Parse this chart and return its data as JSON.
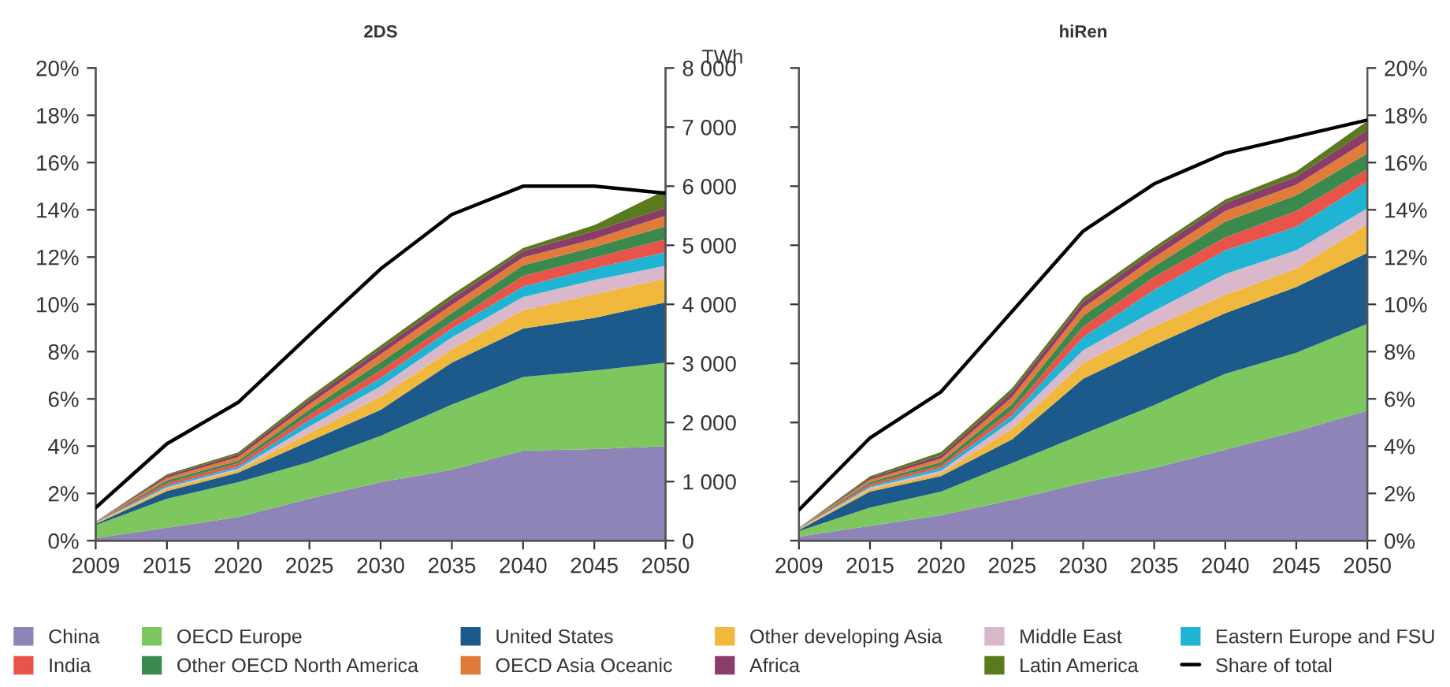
{
  "chart_data": [
    {
      "type": "area",
      "title": "2DS",
      "stacked": true,
      "legend": "bottom",
      "categories": [
        "2009",
        "2015",
        "2020",
        "2025",
        "2030",
        "2035",
        "2040",
        "2045",
        "2050"
      ],
      "series": [
        {
          "name": "China",
          "color": "#8e84b8",
          "axis": "y2",
          "values": [
            45,
            220,
            400,
            710,
            990,
            1200,
            1525,
            1550,
            1600
          ]
        },
        {
          "name": "OECD Europe",
          "color": "#7dc75e",
          "axis": "y2",
          "values": [
            220,
            490,
            590,
            620,
            785,
            1105,
            1245,
            1330,
            1415
          ]
        },
        {
          "name": "United States",
          "color": "#1b5a8a",
          "axis": "y2",
          "values": [
            20,
            130,
            160,
            355,
            440,
            710,
            820,
            890,
            1020
          ]
        },
        {
          "name": "Other developing Asia",
          "color": "#f0b83c",
          "axis": "y2",
          "values": [
            10,
            45,
            45,
            135,
            225,
            225,
            310,
            400,
            400
          ]
        },
        {
          "name": "Middle East",
          "color": "#d9b8cc",
          "axis": "y2",
          "values": [
            5,
            20,
            25,
            115,
            175,
            200,
            225,
            240,
            220
          ]
        },
        {
          "name": "Eastern Europe and FSU",
          "color": "#1fb4d4",
          "axis": "y2",
          "values": [
            5,
            25,
            35,
            105,
            135,
            150,
            175,
            200,
            225
          ]
        },
        {
          "name": "India",
          "color": "#e8534a",
          "axis": "y2",
          "values": [
            5,
            45,
            55,
            90,
            135,
            115,
            180,
            180,
            220
          ]
        },
        {
          "name": "Other OECD North America",
          "color": "#3a8a4e",
          "axis": "y2",
          "values": [
            5,
            45,
            45,
            90,
            135,
            150,
            180,
            180,
            220
          ]
        },
        {
          "name": "OECD Asia Oceanic",
          "color": "#e07b3a",
          "axis": "y2",
          "values": [
            5,
            45,
            60,
            90,
            135,
            135,
            135,
            135,
            180
          ]
        },
        {
          "name": "Africa",
          "color": "#8a3d6a",
          "axis": "y2",
          "values": [
            3,
            35,
            45,
            70,
            90,
            105,
            105,
            135,
            135
          ]
        },
        {
          "name": "Latin America",
          "color": "#5a7a1e",
          "axis": "y2",
          "values": [
            2,
            25,
            35,
            55,
            60,
            70,
            55,
            100,
            300
          ]
        },
        {
          "name": "Share of total",
          "type": "line",
          "color": "#000000",
          "axis": "y",
          "values": [
            1.4,
            4.1,
            5.85,
            8.7,
            11.5,
            13.8,
            15.0,
            15.0,
            14.7
          ]
        }
      ],
      "ylim": [
        0,
        20
      ],
      "yticks": [
        {
          "value": 0,
          "label": "0%"
        },
        {
          "value": 2,
          "label": "2%"
        },
        {
          "value": 4,
          "label": "4%"
        },
        {
          "value": 6,
          "label": "6%"
        },
        {
          "value": 8,
          "label": "8%"
        },
        {
          "value": 10,
          "label": "10%"
        },
        {
          "value": 12,
          "label": "12%"
        },
        {
          "value": 14,
          "label": "14%"
        },
        {
          "value": 16,
          "label": "16%"
        },
        {
          "value": 18,
          "label": "18%"
        },
        {
          "value": 20,
          "label": "20%"
        }
      ],
      "y2lim": [
        0,
        8000
      ],
      "y2label": "TWh",
      "y2ticks": [
        0,
        {
          "value": 1000,
          "label": "1 000"
        },
        {
          "value": 2000,
          "label": "2 000"
        },
        {
          "value": 3000,
          "label": "3 000"
        },
        {
          "value": 4000,
          "label": "4 000"
        },
        {
          "value": 5000,
          "label": "5 000"
        },
        {
          "value": 6000,
          "label": "6 000"
        },
        {
          "value": 7000,
          "label": "7 000"
        },
        {
          "value": 8000,
          "label": "8 000"
        }
      ]
    },
    {
      "type": "area",
      "title": "hiRen",
      "stacked": true,
      "legend": "bottom",
      "categories": [
        "2009",
        "2015",
        "2020",
        "2025",
        "2030",
        "2035",
        "2040",
        "2045",
        "2050"
      ],
      "series": [
        {
          "name": "China",
          "color": "#8e84b8",
          "axis": "y",
          "values": [
            70,
            250,
            430,
            690,
            980,
            1230,
            1540,
            1850,
            2200
          ]
        },
        {
          "name": "OECD Europe",
          "color": "#7dc75e",
          "axis": "y",
          "values": [
            90,
            310,
            400,
            625,
            825,
            1065,
            1285,
            1330,
            1470
          ]
        },
        {
          "name": "United States",
          "color": "#1b5a8a",
          "axis": "y",
          "values": [
            20,
            270,
            265,
            400,
            935,
            1020,
            1025,
            1115,
            1200
          ]
        },
        {
          "name": "Other developing Asia",
          "color": "#f0b83c",
          "axis": "y",
          "values": [
            10,
            45,
            45,
            180,
            265,
            310,
            310,
            310,
            490
          ]
        },
        {
          "name": "Middle East",
          "color": "#d9b8cc",
          "axis": "y",
          "values": [
            5,
            25,
            45,
            135,
            220,
            265,
            355,
            310,
            265
          ]
        },
        {
          "name": "Eastern Europe and FSU",
          "color": "#1fb4d4",
          "axis": "y",
          "values": [
            5,
            25,
            45,
            90,
            220,
            355,
            400,
            400,
            445
          ]
        },
        {
          "name": "India",
          "color": "#e8534a",
          "axis": "y",
          "values": [
            5,
            35,
            45,
            90,
            180,
            220,
            220,
            265,
            220
          ]
        },
        {
          "name": "Other OECD North America",
          "color": "#3a8a4e",
          "axis": "y",
          "values": [
            5,
            35,
            55,
            105,
            180,
            180,
            265,
            265,
            265
          ]
        },
        {
          "name": "OECD Asia Oceanic",
          "color": "#e07b3a",
          "axis": "y",
          "values": [
            5,
            35,
            60,
            115,
            135,
            150,
            180,
            180,
            220
          ]
        },
        {
          "name": "Africa",
          "color": "#8a3d6a",
          "axis": "y",
          "values": [
            3,
            35,
            55,
            90,
            105,
            115,
            135,
            135,
            180
          ]
        },
        {
          "name": "Latin America",
          "color": "#5a7a1e",
          "axis": "y",
          "values": [
            2,
            25,
            55,
            60,
            70,
            60,
            60,
            90,
            150
          ]
        },
        {
          "name": "Share of total",
          "type": "line",
          "color": "#000000",
          "axis": "y2",
          "values": [
            1.3,
            4.35,
            6.3,
            9.7,
            13.1,
            15.1,
            16.4,
            17.1,
            17.8
          ]
        }
      ],
      "ylim": [
        0,
        8000
      ],
      "yticks": [
        0,
        {
          "value": 1000,
          "label": "1 000"
        },
        {
          "value": 2000,
          "label": "2 000"
        },
        {
          "value": 3000,
          "label": "3 000"
        },
        {
          "value": 4000,
          "label": "4 000"
        },
        {
          "value": 5000,
          "label": "5 000"
        },
        {
          "value": 6000,
          "label": "6 000"
        },
        {
          "value": 7000,
          "label": "7 000"
        },
        {
          "value": 8000,
          "label": "8 000"
        }
      ],
      "tick_labels": "x",
      "y2lim": [
        0,
        20
      ],
      "y2ticks": [
        {
          "value": 0,
          "label": "0%"
        },
        {
          "value": 2,
          "label": "2%"
        },
        {
          "value": 4,
          "label": "4%"
        },
        {
          "value": 6,
          "label": "6%"
        },
        {
          "value": 8,
          "label": "8%"
        },
        {
          "value": 10,
          "label": "10%"
        },
        {
          "value": 12,
          "label": "12%"
        },
        {
          "value": 14,
          "label": "14%"
        },
        {
          "value": 16,
          "label": "16%"
        },
        {
          "value": 18,
          "label": "18%"
        },
        {
          "value": 20,
          "label": "20%"
        }
      ]
    }
  ]
}
